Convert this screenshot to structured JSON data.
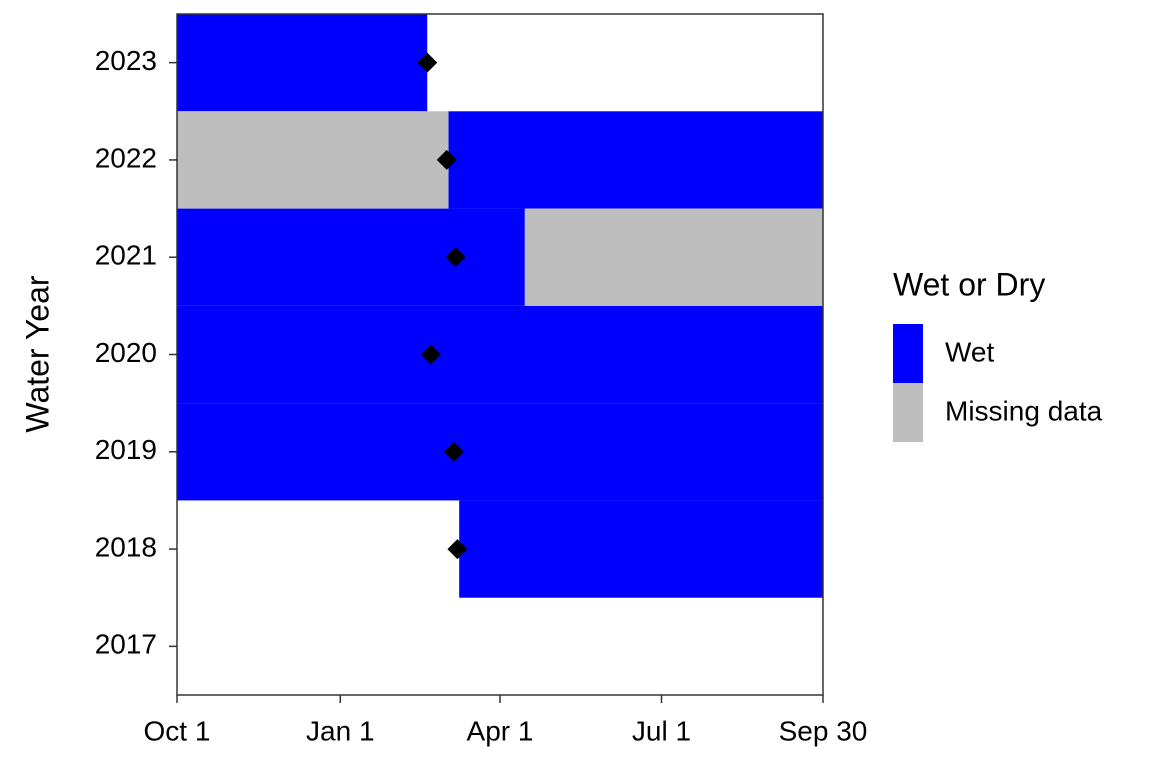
{
  "chart_data": {
    "type": "range_bar",
    "ylabel": "Water Year",
    "categories": [
      "2017",
      "2018",
      "2019",
      "2020",
      "2021",
      "2022",
      "2023"
    ],
    "xlim": [
      1,
      365
    ],
    "xticks": [
      {
        "value": 1,
        "label": "Oct 1"
      },
      {
        "value": 93,
        "label": "Jan 1"
      },
      {
        "value": 183,
        "label": "Apr 1"
      },
      {
        "value": 274,
        "label": "Jul 1"
      },
      {
        "value": 365,
        "label": "Sep 30"
      }
    ],
    "legend_title": "Wet or Dry",
    "legend": "right",
    "series": [
      {
        "name": "Wet",
        "color": "#0000ff",
        "intervals": [
          {
            "category": "2018",
            "start": 160,
            "end": 365
          },
          {
            "category": "2019",
            "start": 1,
            "end": 365
          },
          {
            "category": "2020",
            "start": 1,
            "end": 365
          },
          {
            "category": "2021",
            "start": 1,
            "end": 197
          },
          {
            "category": "2022",
            "start": 154,
            "end": 365
          },
          {
            "category": "2023",
            "start": 1,
            "end": 142
          }
        ]
      },
      {
        "name": "Missing data",
        "color": "#bebebe",
        "intervals": [
          {
            "category": "2021",
            "start": 197,
            "end": 365
          },
          {
            "category": "2022",
            "start": 1,
            "end": 154
          }
        ]
      }
    ],
    "markers": {
      "color": "#000000",
      "values": [
        null,
        159,
        157,
        144,
        158,
        153,
        142
      ]
    }
  }
}
